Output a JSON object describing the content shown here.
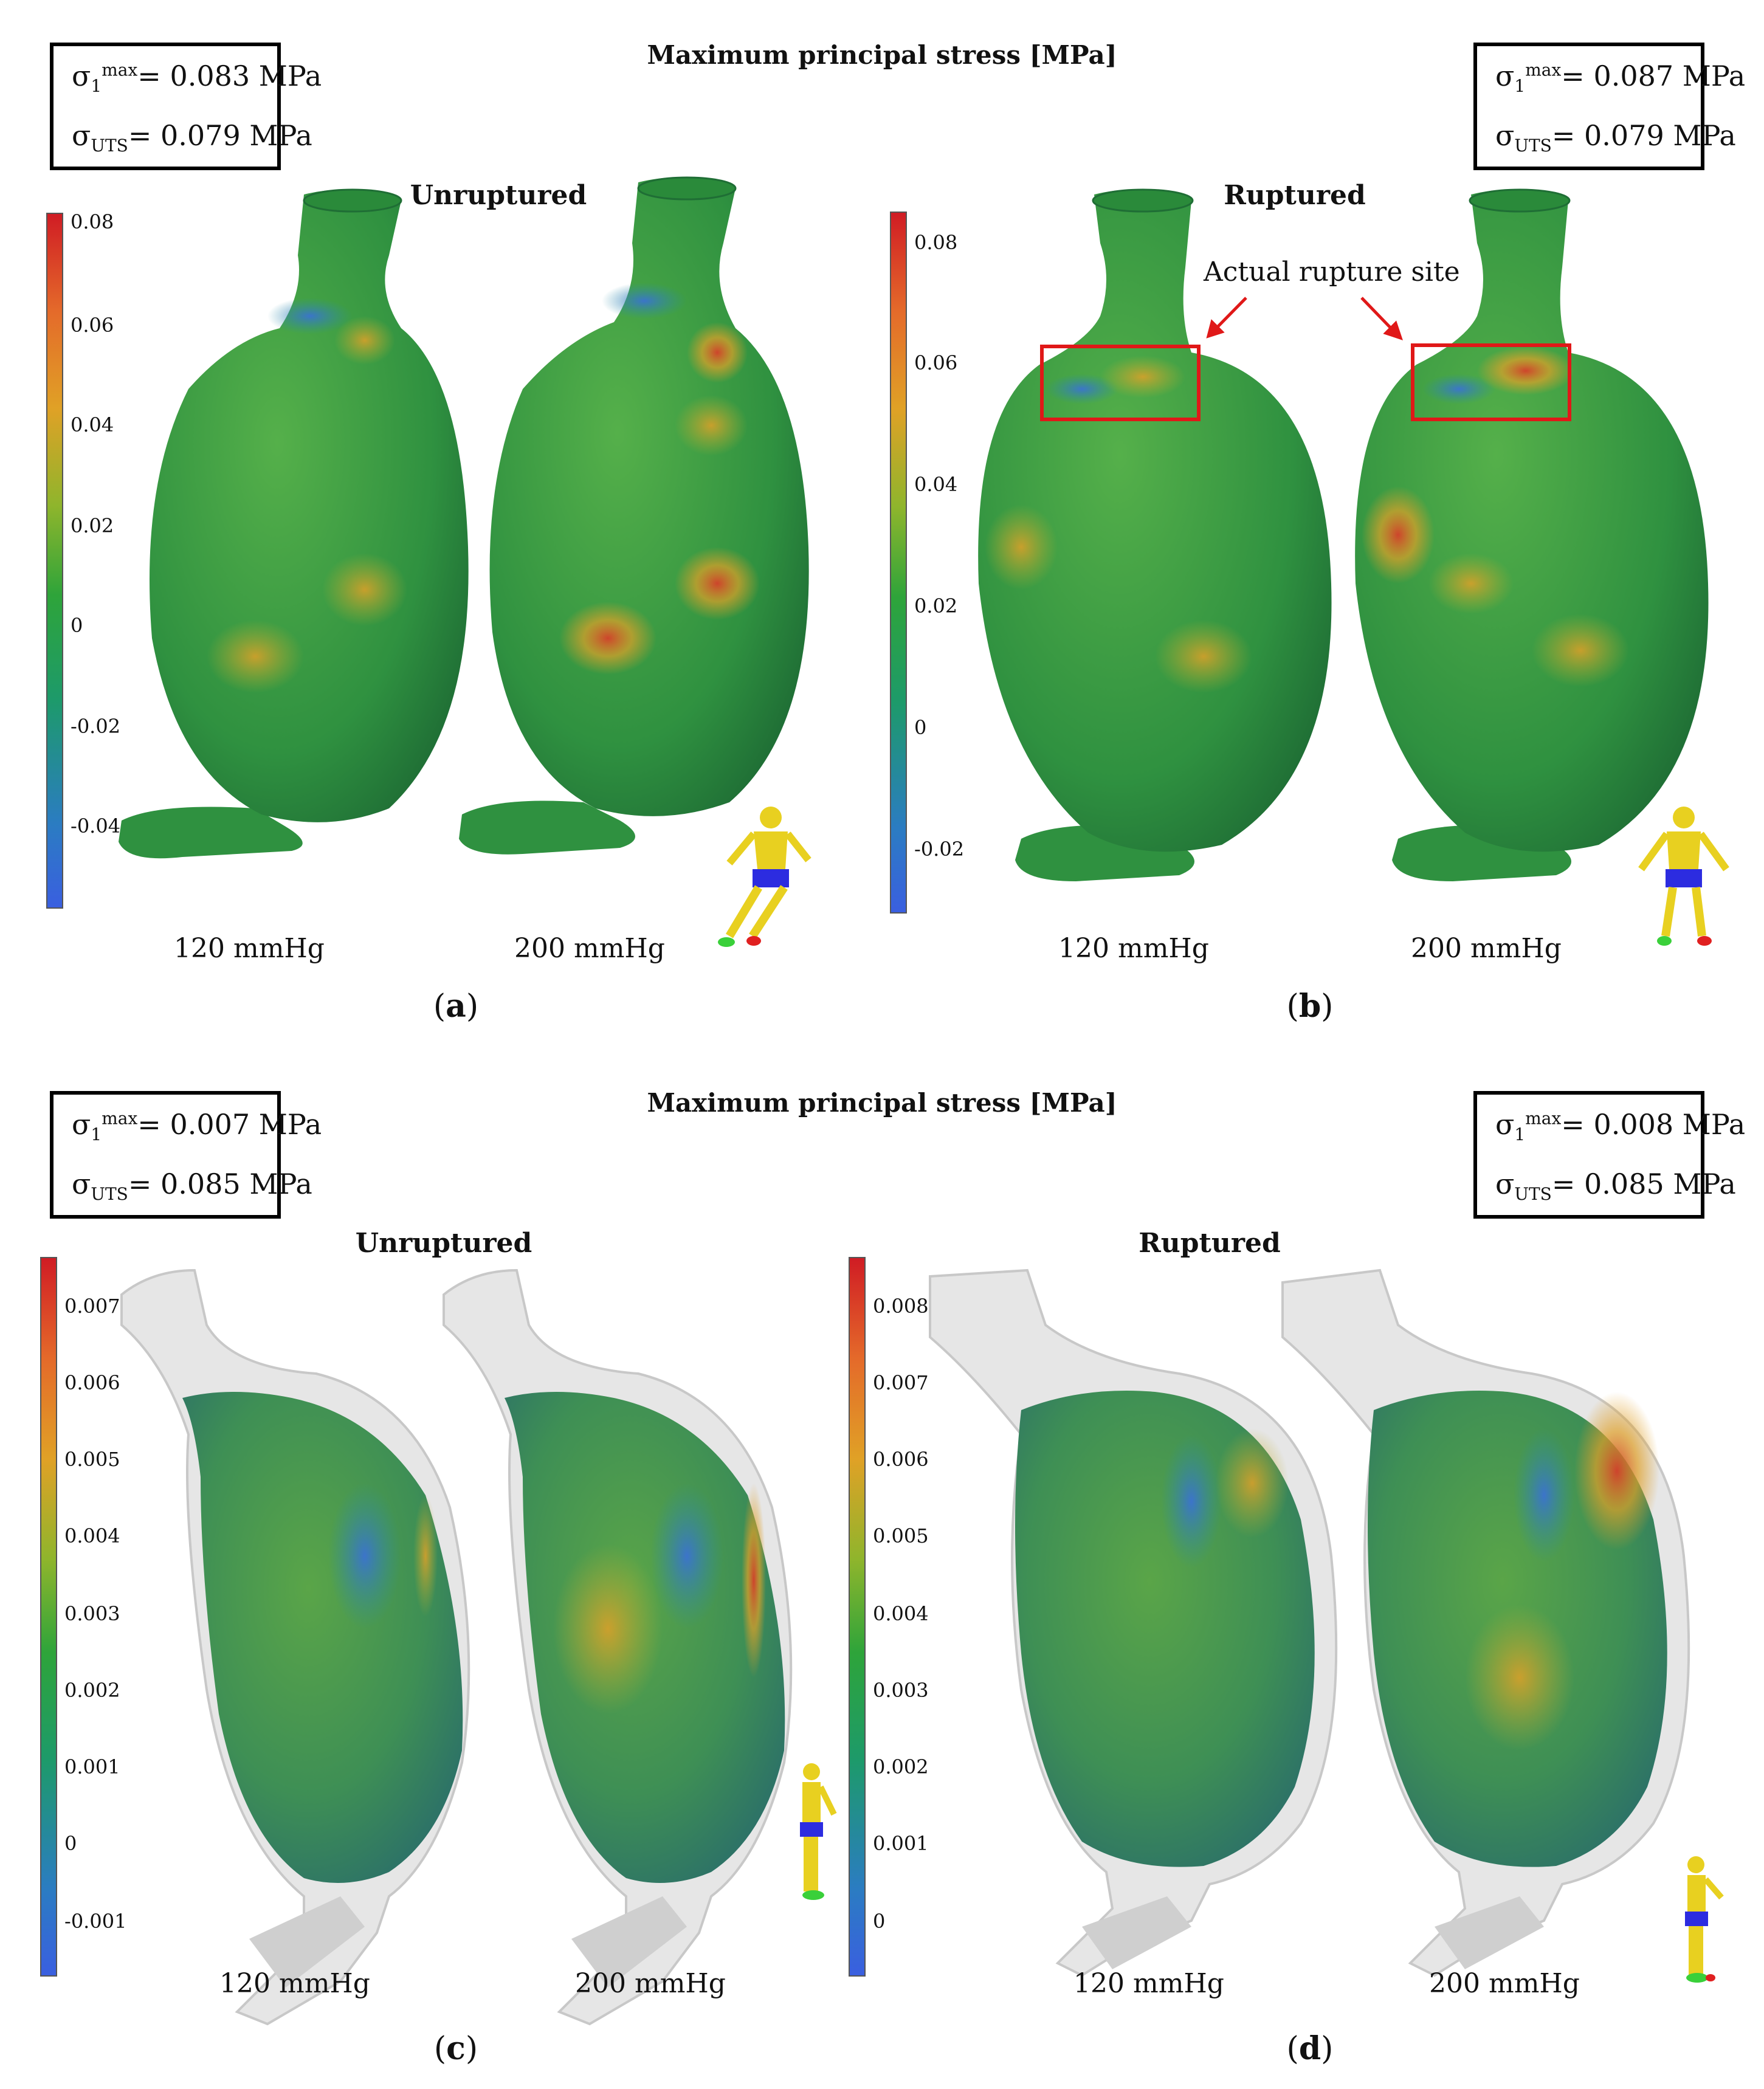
{
  "panels": [
    {
      "id": "a",
      "header": "Maximum principal stress [MPa]",
      "case_label": "Unruptured",
      "info": {
        "sigma_max_label": "σ",
        "sigma_max_sub": "1",
        "sigma_max_sup": "max",
        "sigma_max_value": "= 0.083 MPa",
        "sigma_uts_label": "σ",
        "sigma_uts_sub": "UTS",
        "sigma_uts_value": "= 0.079 MPa"
      },
      "colorbar_ticks": [
        "0.08",
        "0.06",
        "0.04",
        "0.02",
        "0",
        "-0.02",
        "-0.04"
      ],
      "pressures": [
        "120 mmHg",
        "200 mmHg"
      ],
      "letter": "a"
    },
    {
      "id": "b",
      "case_label": "Ruptured",
      "info": {
        "sigma_max_label": "σ",
        "sigma_max_sub": "1",
        "sigma_max_sup": "max",
        "sigma_max_value": "= 0.087 MPa",
        "sigma_uts_label": "σ",
        "sigma_uts_sub": "UTS",
        "sigma_uts_value": "= 0.079 MPa"
      },
      "colorbar_ticks": [
        "0.08",
        "0.06",
        "0.04",
        "0.02",
        "0",
        "-0.02"
      ],
      "annotation": "Actual rupture site",
      "pressures": [
        "120 mmHg",
        "200 mmHg"
      ],
      "letter": "b"
    },
    {
      "id": "c",
      "header": "Maximum principal stress [MPa]",
      "case_label": "Unruptured",
      "info": {
        "sigma_max_label": "σ",
        "sigma_max_sub": "1",
        "sigma_max_sup": "max",
        "sigma_max_value": "= 0.007 MPa",
        "sigma_uts_label": "σ",
        "sigma_uts_sub": "UTS",
        "sigma_uts_value": "= 0.085 MPa"
      },
      "colorbar_ticks": [
        "0.007",
        "0.006",
        "0.005",
        "0.004",
        "0.003",
        "0.002",
        "0.001",
        "0",
        "-0.001"
      ],
      "pressures": [
        "120 mmHg",
        "200 mmHg"
      ],
      "letter": "c"
    },
    {
      "id": "d",
      "case_label": "Ruptured",
      "info": {
        "sigma_max_label": "σ",
        "sigma_max_sub": "1",
        "sigma_max_sup": "max",
        "sigma_max_value": "= 0.008 MPa",
        "sigma_uts_label": "σ",
        "sigma_uts_sub": "UTS",
        "sigma_uts_value": "= 0.085 MPa"
      },
      "colorbar_ticks": [
        "0.008",
        "0.007",
        "0.006",
        "0.005",
        "0.004",
        "0.003",
        "0.002",
        "0.001",
        "0"
      ],
      "pressures": [
        "120 mmHg",
        "200 mmHg"
      ],
      "letter": "d"
    }
  ],
  "colors": {
    "low": "#3a5fe0",
    "mid": "#2ea43a",
    "high": "#d01c24",
    "highlight_box": "#e01818",
    "shell": "#d8d8d8"
  }
}
